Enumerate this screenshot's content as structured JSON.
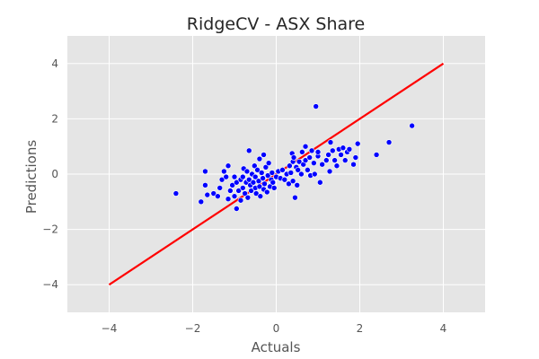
{
  "chart_data": {
    "type": "scatter",
    "title": "RidgeCV - ASX Share",
    "xlabel": "Actuals",
    "ylabel": "Predictions",
    "xlim": [
      -5,
      5
    ],
    "ylim": [
      -5,
      5
    ],
    "xticks": [
      -4,
      -2,
      0,
      2,
      4
    ],
    "yticks": [
      -4,
      -2,
      0,
      2,
      4
    ],
    "xtick_labels": [
      "−4",
      "−2",
      "0",
      "2",
      "4"
    ],
    "ytick_labels": [
      "−4",
      "−2",
      "0",
      "2",
      "4"
    ],
    "grid": true,
    "background": "#E5E5E5",
    "grid_color": "#FFFFFF",
    "series": [
      {
        "kind": "scatter",
        "color": "#0000FF",
        "points": [
          [
            -2.4,
            -0.7
          ],
          [
            -1.8,
            -1.0
          ],
          [
            -1.7,
            0.1
          ],
          [
            -1.7,
            -0.4
          ],
          [
            -1.65,
            -0.75
          ],
          [
            -1.5,
            -0.7
          ],
          [
            -1.4,
            -0.8
          ],
          [
            -1.35,
            -0.5
          ],
          [
            -1.3,
            -0.2
          ],
          [
            -1.25,
            0.1
          ],
          [
            -1.2,
            -0.1
          ],
          [
            -1.15,
            0.3
          ],
          [
            -1.15,
            -0.9
          ],
          [
            -1.1,
            -0.6
          ],
          [
            -1.05,
            -0.4
          ],
          [
            -1.0,
            -0.8
          ],
          [
            -1.0,
            -0.1
          ],
          [
            -0.95,
            -1.25
          ],
          [
            -0.95,
            -0.3
          ],
          [
            -0.9,
            -0.6
          ],
          [
            -0.85,
            -0.2
          ],
          [
            -0.85,
            -0.95
          ],
          [
            -0.8,
            -0.5
          ],
          [
            -0.8,
            -0.1
          ],
          [
            -0.78,
            0.2
          ],
          [
            -0.75,
            -0.7
          ],
          [
            -0.72,
            -0.3
          ],
          [
            -0.7,
            0.1
          ],
          [
            -0.68,
            -0.85
          ],
          [
            -0.65,
            0.85
          ],
          [
            -0.65,
            -0.2
          ],
          [
            -0.62,
            -0.4
          ],
          [
            -0.6,
            -0.6
          ],
          [
            -0.58,
            0.0
          ],
          [
            -0.55,
            -0.3
          ],
          [
            -0.52,
            0.3
          ],
          [
            -0.5,
            -0.5
          ],
          [
            -0.5,
            -0.1
          ],
          [
            -0.48,
            -0.7
          ],
          [
            -0.45,
            0.15
          ],
          [
            -0.42,
            -0.25
          ],
          [
            -0.4,
            0.55
          ],
          [
            -0.4,
            -0.45
          ],
          [
            -0.38,
            -0.8
          ],
          [
            -0.35,
            0.05
          ],
          [
            -0.32,
            -0.15
          ],
          [
            -0.3,
            0.7
          ],
          [
            -0.3,
            -0.55
          ],
          [
            -0.28,
            -0.35
          ],
          [
            -0.25,
            0.25
          ],
          [
            -0.22,
            -0.65
          ],
          [
            -0.2,
            -0.05
          ],
          [
            -0.18,
            0.4
          ],
          [
            -0.15,
            -0.45
          ],
          [
            -0.12,
            -0.2
          ],
          [
            -0.1,
            0.05
          ],
          [
            -0.08,
            -0.3
          ],
          [
            -0.05,
            -0.5
          ],
          [
            0.0,
            -0.1
          ],
          [
            0.05,
            0.1
          ],
          [
            0.1,
            -0.15
          ],
          [
            0.15,
            0.15
          ],
          [
            0.2,
            -0.2
          ],
          [
            0.25,
            0.0
          ],
          [
            0.3,
            -0.35
          ],
          [
            0.32,
            0.3
          ],
          [
            0.35,
            0.05
          ],
          [
            0.38,
            0.75
          ],
          [
            0.4,
            -0.25
          ],
          [
            0.4,
            0.45
          ],
          [
            0.42,
            0.6
          ],
          [
            0.45,
            -0.85
          ],
          [
            0.48,
            0.25
          ],
          [
            0.5,
            -0.4
          ],
          [
            0.52,
            0.15
          ],
          [
            0.55,
            0.45
          ],
          [
            0.6,
            0.0
          ],
          [
            0.62,
            0.8
          ],
          [
            0.65,
            0.35
          ],
          [
            0.7,
            0.5
          ],
          [
            0.7,
            1.0
          ],
          [
            0.75,
            0.15
          ],
          [
            0.8,
            0.6
          ],
          [
            0.82,
            -0.05
          ],
          [
            0.85,
            0.85
          ],
          [
            0.9,
            0.4
          ],
          [
            0.92,
            0.0
          ],
          [
            0.95,
            2.45
          ],
          [
            1.0,
            0.65
          ],
          [
            1.0,
            0.8
          ],
          [
            1.05,
            -0.3
          ],
          [
            1.1,
            0.35
          ],
          [
            1.2,
            0.5
          ],
          [
            1.25,
            0.7
          ],
          [
            1.28,
            0.1
          ],
          [
            1.3,
            1.15
          ],
          [
            1.35,
            0.85
          ],
          [
            1.4,
            0.5
          ],
          [
            1.45,
            0.3
          ],
          [
            1.5,
            0.9
          ],
          [
            1.55,
            0.7
          ],
          [
            1.6,
            0.95
          ],
          [
            1.65,
            0.5
          ],
          [
            1.7,
            0.8
          ],
          [
            1.75,
            0.9
          ],
          [
            1.85,
            0.35
          ],
          [
            1.9,
            0.6
          ],
          [
            1.95,
            1.1
          ],
          [
            2.4,
            0.7
          ],
          [
            2.7,
            1.15
          ],
          [
            3.25,
            1.75
          ]
        ]
      },
      {
        "kind": "line",
        "color": "#FF0000",
        "points": [
          [
            -4,
            -4
          ],
          [
            4,
            4
          ]
        ]
      }
    ]
  }
}
